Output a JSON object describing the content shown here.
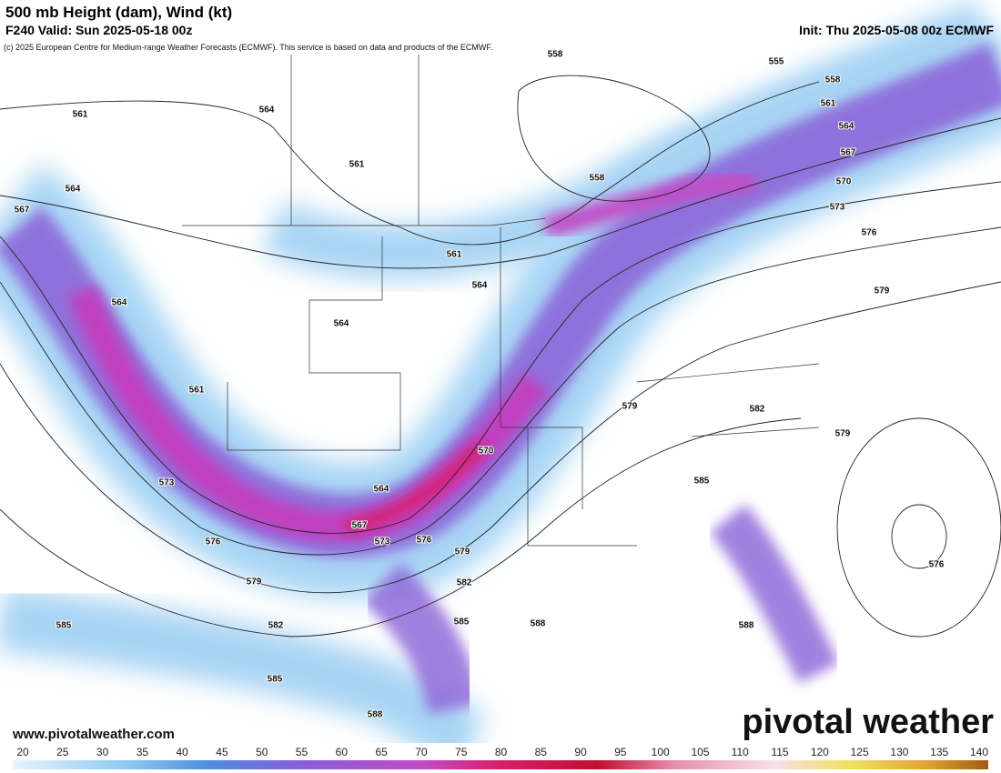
{
  "header": {
    "title": "500 mb Height (dam), Wind (kt)",
    "valid": "F240 Valid: Sun 2025-05-18 00z",
    "init": "Init: Thu 2025-05-08 00z ECMWF",
    "credit": "(c) 2025 European Centre for Medium-range Weather Forecasts (ECMWF). This service is based on data and products of the ECMWF."
  },
  "map": {
    "contour_labels": [
      558,
      555,
      558,
      561,
      564,
      561,
      564,
      567,
      561,
      558,
      570,
      564,
      573,
      567,
      576,
      561,
      564,
      579,
      564,
      564,
      561,
      579,
      582,
      579,
      570,
      573,
      564,
      585,
      567,
      576,
      573,
      576,
      579,
      576,
      579,
      582,
      585,
      582,
      585,
      588,
      588,
      585,
      588
    ]
  },
  "footer": {
    "website": "www.pivotalweather.com",
    "logo": "pivotal weather"
  },
  "colorbar": {
    "ticks": [
      20,
      25,
      30,
      35,
      40,
      45,
      50,
      55,
      60,
      65,
      70,
      75,
      80,
      85,
      90,
      95,
      100,
      105,
      110,
      115,
      120,
      125,
      130,
      135,
      140
    ]
  }
}
